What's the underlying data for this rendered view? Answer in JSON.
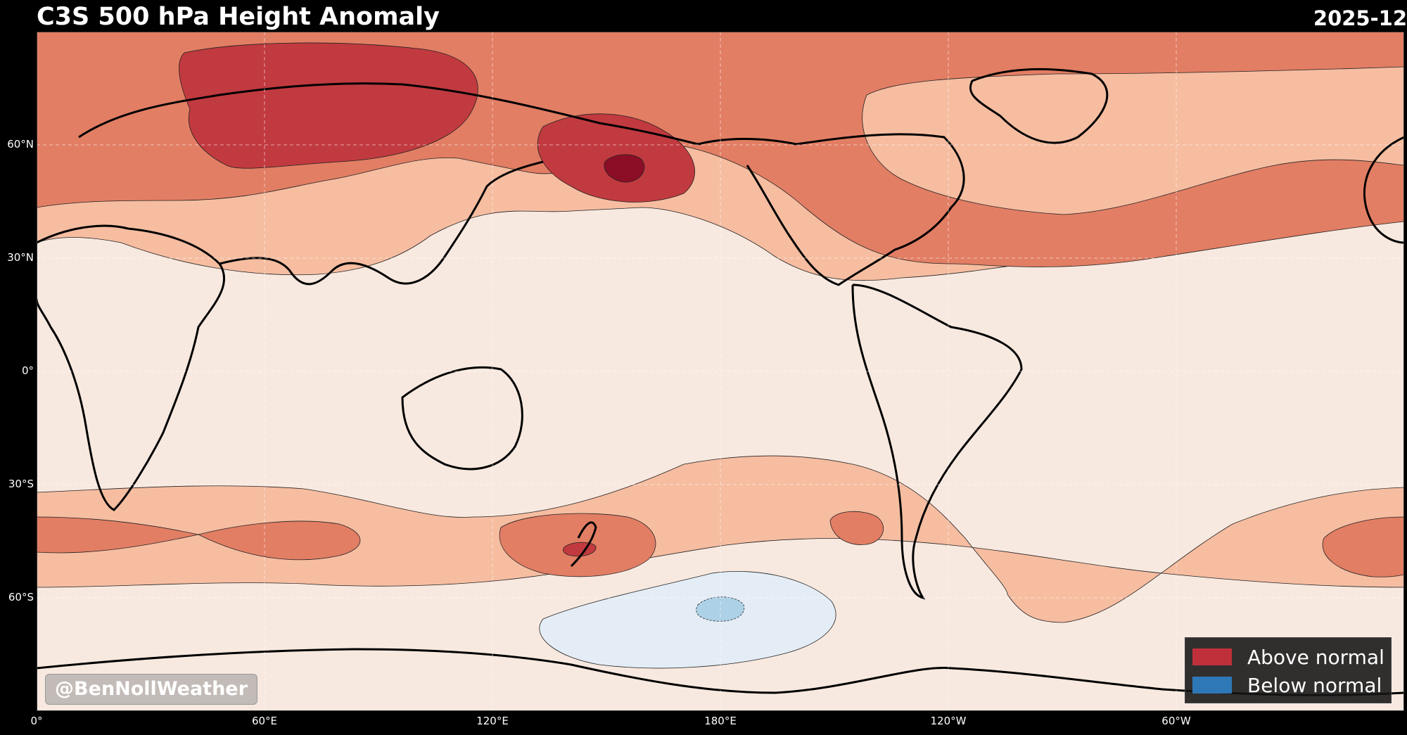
{
  "header": {
    "title": "C3S 500 hPa Height Anomaly",
    "date": "2025-12"
  },
  "map": {
    "projection": "equirectangular, centered 180°",
    "lat_labels": [
      "60°N",
      "30°N",
      "0°",
      "30°S",
      "60°S"
    ],
    "lon_labels": [
      "0°",
      "60°E",
      "120°E",
      "180°E",
      "120°W",
      "60°W"
    ],
    "gridlines": true,
    "colors": {
      "neutral": "#f8e9e0",
      "positive_level_1": "#f6bda1",
      "positive_level_2": "#e27e64",
      "positive_level_3": "#c13a3f",
      "positive_level_4": "#8c0e26",
      "negative_level_1": "#e4edf6",
      "negative_level_2": "#add1e6"
    }
  },
  "legend": {
    "items": [
      {
        "label": "Above normal",
        "color": "#c0303b"
      },
      {
        "label": "Below normal",
        "color": "#2e78b7"
      }
    ]
  },
  "credit": "@BenNollWeather"
}
